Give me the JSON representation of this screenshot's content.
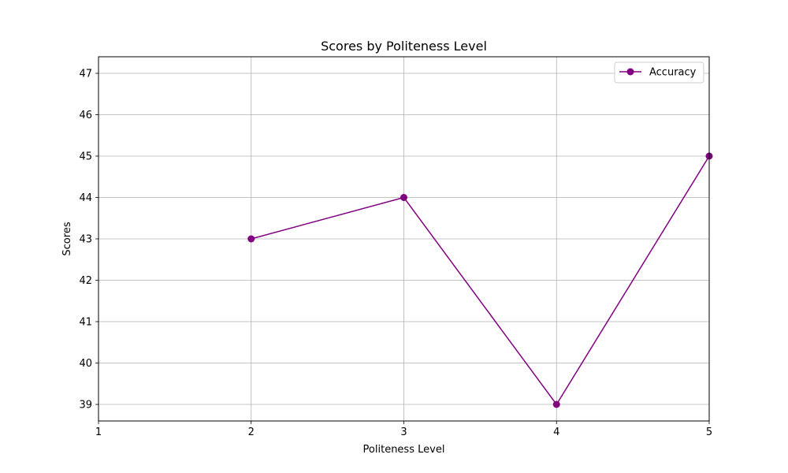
{
  "chart_data": {
    "type": "line",
    "title": "Scores by Politeness Level",
    "xlabel": "Politeness Level",
    "ylabel": "Scores",
    "xlim": [
      1,
      5
    ],
    "ylim": [
      38.6,
      47.4
    ],
    "x_ticks": [
      1,
      2,
      3,
      4,
      5
    ],
    "y_ticks": [
      39,
      40,
      41,
      42,
      43,
      44,
      45,
      46,
      47
    ],
    "grid": true,
    "legend_position": "top-right",
    "series": [
      {
        "name": "Accuracy",
        "color": "#800080",
        "marker": "circle",
        "x": [
          2,
          3,
          4,
          5
        ],
        "y": [
          43,
          44,
          39,
          45
        ]
      }
    ]
  }
}
